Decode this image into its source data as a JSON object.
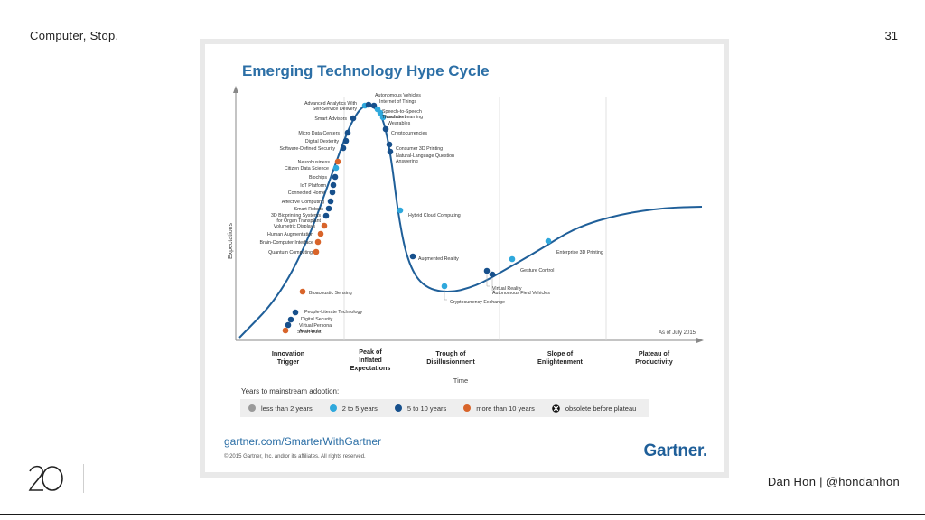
{
  "slide": {
    "title": "Computer, Stop.",
    "page_number": "31",
    "author": "Dan Hon | @hondanhon",
    "logo_text": "20"
  },
  "figure": {
    "title": "Emerging Technology Hype Cycle",
    "y_axis_label": "Expectations",
    "x_axis_label": "Time",
    "as_of": "As of July 2015",
    "phases": [
      "Innovation Trigger",
      "Peak of Inflated Expectations",
      "Trough of Disillusionment",
      "Slope of Enlightenment",
      "Plateau of Productivity"
    ],
    "legend_title": "Years to mainstream adoption:",
    "legend": [
      {
        "label": "less than 2 years",
        "color": "#9a9a9a"
      },
      {
        "label": "2 to 5 years",
        "color": "#2fa8dc"
      },
      {
        "label": "5 to 10 years",
        "color": "#17508c"
      },
      {
        "label": "more than 10 years",
        "color": "#d8642a"
      },
      {
        "label": "obsolete before plateau",
        "color": "#111111"
      }
    ],
    "url": "gartner.com/SmarterWithGartner",
    "copyright": "© 2015 Gartner, Inc. and/or its affiliates. All rights reserved.",
    "brand": "Gartner."
  },
  "chart_data": {
    "type": "scatter",
    "title": "Emerging Technology Hype Cycle",
    "xlabel": "Time",
    "ylabel": "Expectations",
    "categories_legend": [
      "less than 2 years",
      "2 to 5 years",
      "5 to 10 years",
      "more than 10 years",
      "obsolete before plateau"
    ],
    "technologies": [
      {
        "name": "Smart Dust",
        "category": "more than 10 years"
      },
      {
        "name": "Virtual Personal Assistants",
        "category": "5 to 10 years"
      },
      {
        "name": "Digital Security",
        "category": "5 to 10 years"
      },
      {
        "name": "People-Literate Technology",
        "category": "5 to 10 years"
      },
      {
        "name": "Bioacoustic Sensing",
        "category": "more than 10 years"
      },
      {
        "name": "Quantum Computing",
        "category": "more than 10 years"
      },
      {
        "name": "Brain-Computer Interface",
        "category": "more than 10 years"
      },
      {
        "name": "Human Augmentation",
        "category": "more than 10 years"
      },
      {
        "name": "Volumetric Displays",
        "category": "more than 10 years"
      },
      {
        "name": "3D Bioprinting Systems for Organ Transplant",
        "category": "5 to 10 years"
      },
      {
        "name": "Smart Robots",
        "category": "5 to 10 years"
      },
      {
        "name": "Affective Computing",
        "category": "5 to 10 years"
      },
      {
        "name": "Connected Home",
        "category": "5 to 10 years"
      },
      {
        "name": "IoT Platform",
        "category": "5 to 10 years"
      },
      {
        "name": "Biochips",
        "category": "5 to 10 years"
      },
      {
        "name": "Citizen Data Science",
        "category": "2 to 5 years"
      },
      {
        "name": "Neurobusiness",
        "category": "more than 10 years"
      },
      {
        "name": "Software-Defined Security",
        "category": "5 to 10 years"
      },
      {
        "name": "Digital Dexterity",
        "category": "5 to 10 years"
      },
      {
        "name": "Micro Data Centers",
        "category": "5 to 10 years"
      },
      {
        "name": "Smart Advisors",
        "category": "5 to 10 years"
      },
      {
        "name": "Advanced Analytics With Self-Service Delivery",
        "category": "2 to 5 years"
      },
      {
        "name": "Autonomous Vehicles",
        "category": "5 to 10 years"
      },
      {
        "name": "Internet of Things",
        "category": "5 to 10 years"
      },
      {
        "name": "Speech-to-Speech Translation",
        "category": "2 to 5 years"
      },
      {
        "name": "Machine Learning",
        "category": "2 to 5 years"
      },
      {
        "name": "Wearables",
        "category": "2 to 5 years"
      },
      {
        "name": "Cryptocurrencies",
        "category": "5 to 10 years"
      },
      {
        "name": "Consumer 3D Printing",
        "category": "5 to 10 years"
      },
      {
        "name": "Natural-Language Question Answering",
        "category": "5 to 10 years"
      },
      {
        "name": "Hybrid Cloud Computing",
        "category": "2 to 5 years"
      },
      {
        "name": "Augmented Reality",
        "category": "5 to 10 years"
      },
      {
        "name": "Cryptocurrency Exchange",
        "category": "2 to 5 years"
      },
      {
        "name": "Virtual Reality",
        "category": "5 to 10 years"
      },
      {
        "name": "Autonomous Field Vehicles",
        "category": "5 to 10 years"
      },
      {
        "name": "Gesture Control",
        "category": "2 to 5 years"
      },
      {
        "name": "Enterprise 3D Printing",
        "category": "2 to 5 years"
      }
    ]
  }
}
